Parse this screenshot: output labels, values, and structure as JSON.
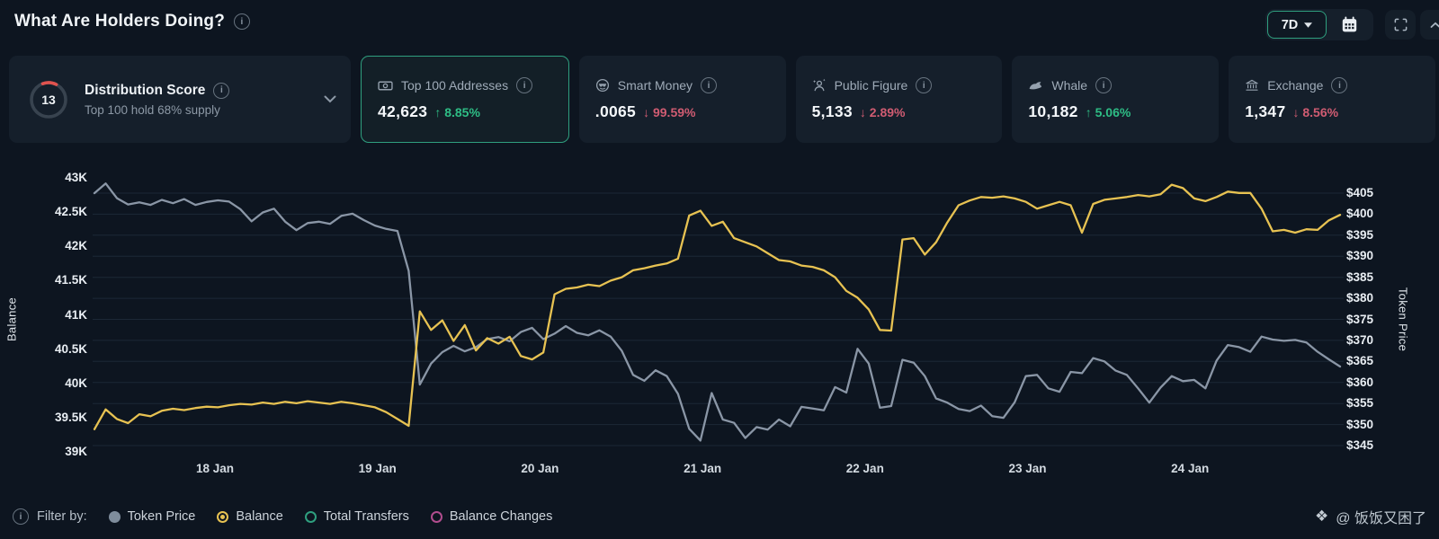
{
  "header": {
    "title": "What Are Holders Doing?",
    "range_label": "7D"
  },
  "cards": {
    "distribution": {
      "score": "13",
      "title": "Distribution Score",
      "subtitle": "Top 100 hold 68% supply"
    },
    "stats": [
      {
        "title": "Top 100 Addresses",
        "value": "42,623",
        "arrow": "↑",
        "delta": "8.85%"
      },
      {
        "title": "Smart Money",
        "value": ".0065",
        "arrow": "↓",
        "delta": "99.59%"
      },
      {
        "title": "Public Figure",
        "value": "5,133",
        "arrow": "↓",
        "delta": "2.89%"
      },
      {
        "title": "Whale",
        "value": "10,182",
        "arrow": "↑",
        "delta": "5.06%"
      },
      {
        "title": "Exchange",
        "value": "1,347",
        "arrow": "↓",
        "delta": "8.56%"
      }
    ]
  },
  "chart_data": {
    "type": "line",
    "title": "What Are Holders Doing?",
    "x_labels": [
      "18 Jan",
      "19 Jan",
      "20 Jan",
      "21 Jan",
      "22 Jan",
      "23 Jan",
      "24 Jan"
    ],
    "y_left": {
      "label": "Balance",
      "min": 39000,
      "max": 43000,
      "ticks": [
        "43K",
        "42.5K",
        "42K",
        "41.5K",
        "41K",
        "40.5K",
        "40K",
        "39.5K",
        "39K"
      ]
    },
    "y_right": {
      "label": "Token Price",
      "min": 345,
      "max": 405,
      "ticks": [
        "$405",
        "$400",
        "$395",
        "$390",
        "$385",
        "$380",
        "$375",
        "$370",
        "$365",
        "$360",
        "$355",
        "$350",
        "$345"
      ]
    },
    "grid": true,
    "legend_position": "bottom",
    "series": [
      {
        "name": "Balance",
        "axis": "left",
        "color": "#e7c252",
        "values": [
          39330,
          39620,
          39480,
          39420,
          39550,
          39520,
          39600,
          39630,
          39610,
          39640,
          39660,
          39650,
          39680,
          39700,
          39690,
          39720,
          39700,
          39730,
          39710,
          39740,
          39720,
          39700,
          39730,
          39710,
          39680,
          39650,
          39580,
          39480,
          39380,
          41050,
          40780,
          40920,
          40620,
          40850,
          40480,
          40660,
          40580,
          40680,
          40400,
          40350,
          40450,
          41300,
          41380,
          41400,
          41440,
          41420,
          41500,
          41550,
          41650,
          41680,
          41720,
          41750,
          41820,
          42450,
          42520,
          42300,
          42360,
          42120,
          42060,
          42000,
          41900,
          41800,
          41780,
          41720,
          41700,
          41650,
          41550,
          41350,
          41250,
          41080,
          40780,
          40770,
          42100,
          42120,
          41880,
          42060,
          42350,
          42600,
          42670,
          42720,
          42710,
          42730,
          42700,
          42650,
          42550,
          42600,
          42650,
          42600,
          42200,
          42620,
          42680,
          42700,
          42720,
          42750,
          42730,
          42760,
          42900,
          42850,
          42700,
          42660,
          42720,
          42800,
          42780,
          42780,
          42550,
          42220,
          42240,
          42200,
          42250,
          42240,
          42380,
          42460
        ]
      },
      {
        "name": "Token Price",
        "axis": "right",
        "color": "#8a96a6",
        "values": [
          405.0,
          407.3,
          403.8,
          402.3,
          402.8,
          402.2,
          403.4,
          402.6,
          403.6,
          402.2,
          402.9,
          403.3,
          403.0,
          401.2,
          398.3,
          400.4,
          401.3,
          398.2,
          396.2,
          397.9,
          398.2,
          397.7,
          399.6,
          400.1,
          398.6,
          397.3,
          396.5,
          396.0,
          386.5,
          359.5,
          364.5,
          367.2,
          368.7,
          367.4,
          368.4,
          370.3,
          370.8,
          369.8,
          372.0,
          373.0,
          370.3,
          371.6,
          373.4,
          371.8,
          371.2,
          372.4,
          370.9,
          367.5,
          361.8,
          360.4,
          362.9,
          361.5,
          357.3,
          349.0,
          346.2,
          357.5,
          351.2,
          350.4,
          346.8,
          349.4,
          348.8,
          351.2,
          349.6,
          354.2,
          353.8,
          353.4,
          358.9,
          357.6,
          368.0,
          364.5,
          354.0,
          354.4,
          365.4,
          364.7,
          361.5,
          356.2,
          355.2,
          353.7,
          353.2,
          354.5,
          352.0,
          351.6,
          355.3,
          361.5,
          361.8,
          358.6,
          357.8,
          362.5,
          362.2,
          365.8,
          365.0,
          362.8,
          361.8,
          358.6,
          355.2,
          358.8,
          361.5,
          360.3,
          360.6,
          358.6,
          365.2,
          368.9,
          368.4,
          367.3,
          370.9,
          370.2,
          369.9,
          370.1,
          369.5,
          367.3,
          365.5,
          363.8
        ]
      }
    ]
  },
  "legend": {
    "prefix": "Filter by:",
    "items": [
      {
        "label": "Token Price",
        "style": "filled",
        "color": "#7f8d9c"
      },
      {
        "label": "Balance",
        "style": "ring-dot",
        "color": "#e7c252"
      },
      {
        "label": "Total Transfers",
        "style": "ring",
        "color": "#2f9f7f"
      },
      {
        "label": "Balance Changes",
        "style": "ring",
        "color": "#b14d8e"
      }
    ]
  },
  "watermark": "@ 饭饭又困了",
  "colors": {
    "background": "#0d1520",
    "card": "#151f2b",
    "selected_border": "#2f9f7f",
    "grid": "#1c2836",
    "balance_line": "#e7c252",
    "price_line": "#8a96a6",
    "accent_green": "#2ebd85",
    "accent_red": "#d05c72",
    "gauge_arc": "#e0534f"
  }
}
